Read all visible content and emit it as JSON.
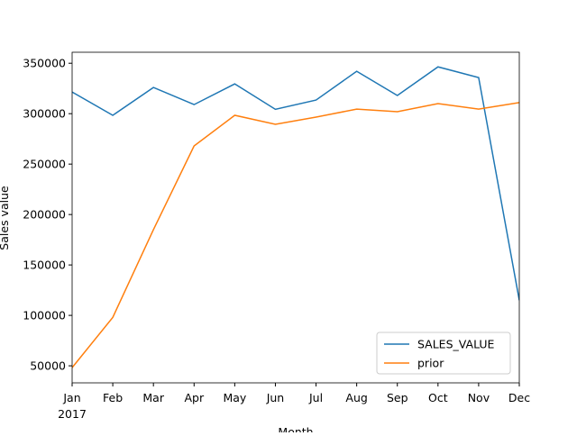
{
  "chart_data": {
    "type": "line",
    "categories": [
      "Jan",
      "Feb",
      "Mar",
      "Apr",
      "May",
      "Jun",
      "Jul",
      "Aug",
      "Sep",
      "Oct",
      "Nov",
      "Dec"
    ],
    "year_label": "2017",
    "xlabel": "Month",
    "ylabel": "Sales value",
    "series": [
      {
        "name": "SALES_VALUE",
        "color": "#1f77b4",
        "values": [
          321500,
          298400,
          326000,
          309000,
          329500,
          304300,
          313500,
          342000,
          318000,
          346400,
          335800,
          115000
        ]
      },
      {
        "name": "prior",
        "color": "#ff7f0e",
        "values": [
          48200,
          98000,
          185000,
          268000,
          298400,
          289500,
          296600,
          304500,
          302000,
          310000,
          304500,
          311000
        ]
      }
    ],
    "ylim": [
      33100,
      360900
    ],
    "yticks": [
      50000,
      100000,
      150000,
      200000,
      250000,
      300000,
      350000
    ],
    "legend": "lower right",
    "grid": false
  }
}
